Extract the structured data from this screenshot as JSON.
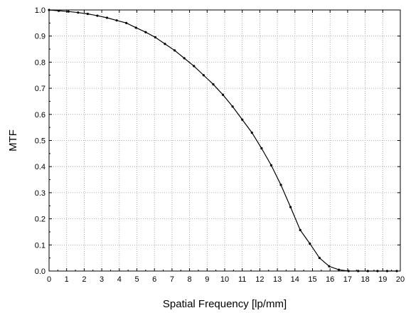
{
  "chart_data": {
    "type": "line",
    "title": "",
    "xlabel": "Spatial Frequency [lp/mm]",
    "ylabel": "MTF",
    "xlim": [
      0,
      20
    ],
    "ylim": [
      0.0,
      1.0
    ],
    "xticks": [
      "0",
      "1",
      "2",
      "3",
      "4",
      "5",
      "6",
      "7",
      "8",
      "9",
      "10",
      "11",
      "12",
      "13",
      "14",
      "15",
      "16",
      "17",
      "18",
      "19",
      "20"
    ],
    "yticks": [
      "0.0",
      "0.1",
      "0.2",
      "0.3",
      "0.4",
      "0.5",
      "0.6",
      "0.7",
      "0.8",
      "0.9",
      "1.0"
    ],
    "grid": true,
    "line_color": "#000000",
    "series": [
      {
        "x": [
          0,
          0.55,
          1.1,
          1.65,
          2.2,
          2.75,
          3.3,
          3.85,
          4.4,
          4.95,
          5.5,
          6.05,
          6.6,
          7.15,
          7.7,
          8.25,
          8.8,
          9.35,
          9.9,
          10.45,
          11.0,
          11.55,
          12.1,
          12.65,
          13.2,
          13.75,
          14.3,
          14.85,
          15.4,
          15.95,
          16.5,
          17.05,
          17.6,
          18.15,
          18.7,
          19.25,
          19.8
        ],
        "y": [
          1.0,
          0.997,
          0.994,
          0.99,
          0.985,
          0.978,
          0.97,
          0.96,
          0.95,
          0.932,
          0.915,
          0.895,
          0.87,
          0.845,
          0.815,
          0.785,
          0.75,
          0.715,
          0.675,
          0.63,
          0.58,
          0.53,
          0.47,
          0.405,
          0.33,
          0.245,
          0.157,
          0.105,
          0.05,
          0.018,
          0.005,
          0.0,
          0.0,
          0.0,
          0.0,
          0.0,
          0.0
        ]
      }
    ]
  }
}
